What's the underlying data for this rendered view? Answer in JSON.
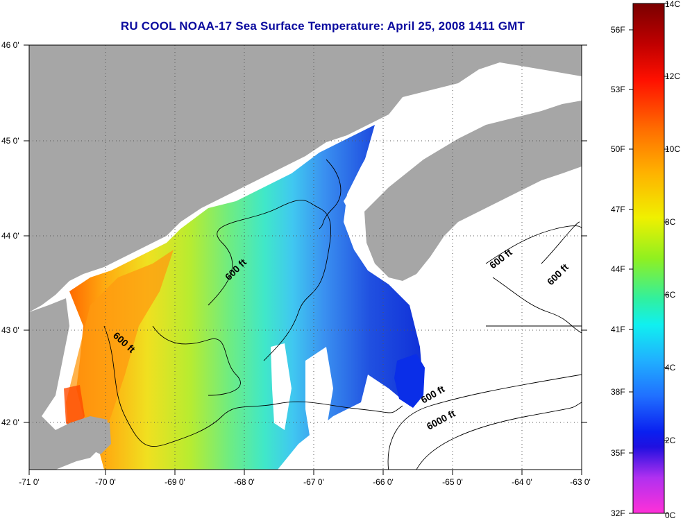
{
  "title": "RU COOL  NOAA-17  Sea Surface Temperature:  April 25, 2008 1411 GMT",
  "colors": {
    "land": "#a6a6a6",
    "frame": "#000000",
    "cloud": "#ffffff"
  },
  "axes": {
    "lat_labels": [
      "46 0'",
      "45 0'",
      "44 0'",
      "43 0'",
      "42 0'"
    ],
    "lon_labels": [
      "-71 0'",
      "-70 0'",
      "-69 0'",
      "-68 0'",
      "-67 0'",
      "-66 0'",
      "-65 0'",
      "-64 0'",
      "-63 0'"
    ],
    "lat_range": [
      41.5,
      46.0
    ],
    "lon_range": [
      -71.0,
      -63.0
    ],
    "grid": "dotted"
  },
  "contour_labels": [
    "600 ft",
    "600 ft",
    "600 ft",
    "600 ft",
    "600 ft",
    "6000 ft"
  ],
  "colorbar": {
    "fahrenheit_labels": [
      "56F",
      "53F",
      "50F",
      "47F",
      "44F",
      "41F",
      "38F",
      "35F",
      "32F"
    ],
    "celsius_labels": [
      "14C",
      "12C",
      "10C",
      "8C",
      "6C",
      "4C",
      "2C",
      "0C"
    ],
    "range_c": [
      0,
      14
    ]
  }
}
